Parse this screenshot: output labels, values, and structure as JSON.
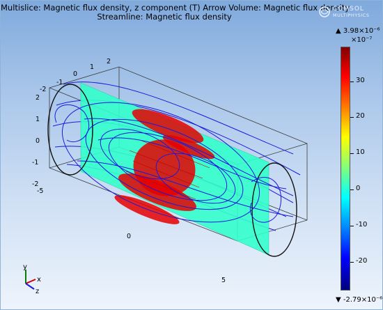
{
  "titles": {
    "line1": "Multislice: Magnetic flux density, z component (T)  Arrow Volume: Magnetic flux density",
    "line2": "Streamline: Magnetic flux density"
  },
  "logo": {
    "line1": "COMSOL",
    "line2": "MULTIPHYSICS"
  },
  "axes": {
    "x_ticks": [
      "-2",
      "-1",
      "0",
      "1",
      "2"
    ],
    "y_ticks": [
      "2",
      "1",
      "0",
      "-1",
      "-2"
    ],
    "z_ticks": [
      "-5",
      "0",
      "5"
    ]
  },
  "colorbar": {
    "max_label": "▲ 3.98×10⁻⁶",
    "exponent": "×10⁻⁷",
    "min_label": "▼ -2.79×10⁻⁶",
    "ticks": [
      "30",
      "20",
      "10",
      "0",
      "-10",
      "-20"
    ],
    "colors": [
      "#800000",
      "#ff0000",
      "#ff8000",
      "#ffff00",
      "#80ff80",
      "#00ffff",
      "#0080ff",
      "#0000ff",
      "#00007f"
    ]
  },
  "triad": {
    "y": "y",
    "x": "x",
    "z": "z"
  },
  "colors": {
    "slice": "#33ffcc",
    "streamline": "#1a1adb",
    "arrows": "#e60000",
    "frame": "#3a3a3a"
  }
}
